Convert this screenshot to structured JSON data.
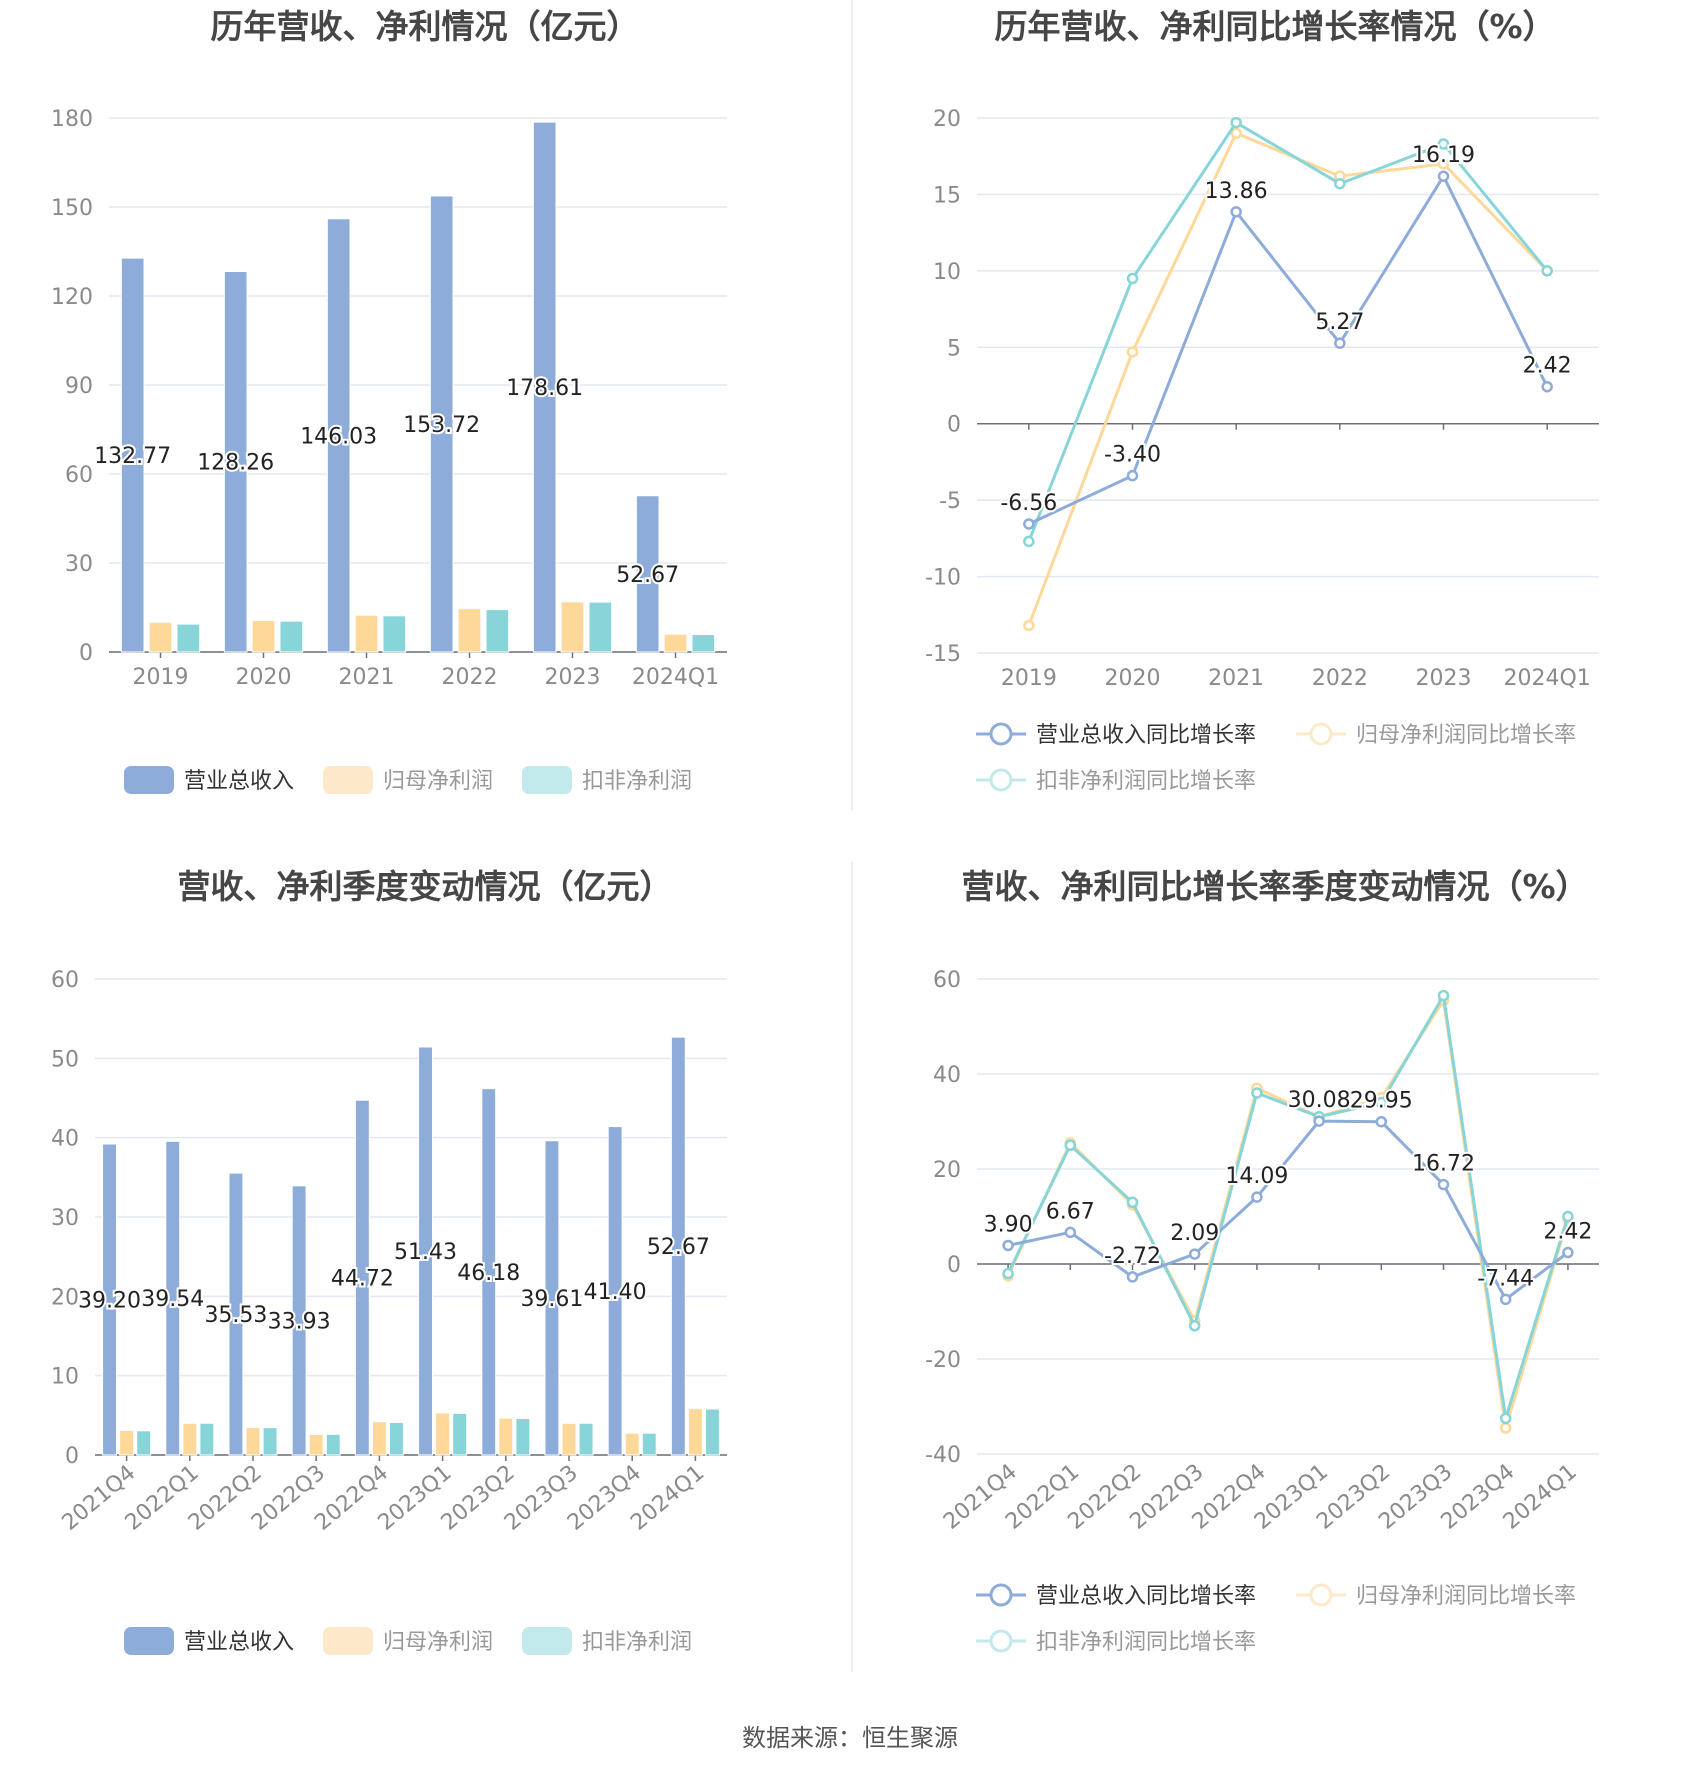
{
  "source": "数据来源：恒生聚源",
  "colors": {
    "revenue": "#8eacd9",
    "net": "#fdd898",
    "kf": "#87d5d9",
    "net_legend": "#fde9c9",
    "kf_legend": "#c2e9eb",
    "grid": "#e3e7f1",
    "axis": "#6e7079"
  },
  "chart_data": [
    {
      "type": "bar",
      "title": "历年营收、净利情况（亿元）",
      "categories": [
        "2019",
        "2020",
        "2021",
        "2022",
        "2023",
        "2024Q1"
      ],
      "yticks": [
        0,
        30,
        60,
        90,
        120,
        150,
        180
      ],
      "ylim": [
        0,
        180
      ],
      "series": [
        {
          "name": "营业总收入",
          "values": [
            132.77,
            128.26,
            146.03,
            153.72,
            178.61,
            52.67
          ],
          "labels": [
            "132.77",
            "128.26",
            "146.03",
            "153.72",
            "178.61",
            "52.67"
          ]
        },
        {
          "name": "归母净利润",
          "values": [
            10.0,
            10.6,
            12.4,
            14.6,
            16.9,
            6.0
          ]
        },
        {
          "name": "扣非净利润",
          "values": [
            9.4,
            10.4,
            12.2,
            14.3,
            16.8,
            5.9
          ]
        }
      ],
      "legend": "bottom"
    },
    {
      "type": "line",
      "title": "历年营收、净利同比增长率情况（%）",
      "categories": [
        "2019",
        "2020",
        "2021",
        "2022",
        "2023",
        "2024Q1"
      ],
      "yticks": [
        -15,
        -10,
        -5,
        0,
        5,
        10,
        15,
        20
      ],
      "ylim": [
        -15,
        20
      ],
      "series": [
        {
          "name": "营业总收入同比增长率",
          "values": [
            -6.56,
            -3.4,
            13.86,
            5.27,
            16.19,
            2.42
          ],
          "labels": [
            "-6.56",
            "-3.40",
            "13.86",
            "5.27",
            "16.19",
            "2.42"
          ]
        },
        {
          "name": "归母净利润同比增长率",
          "values": [
            -13.2,
            4.7,
            19.0,
            16.2,
            17.0,
            10.0
          ]
        },
        {
          "name": "扣非净利润同比增长率",
          "values": [
            -7.7,
            9.5,
            19.7,
            15.7,
            18.3,
            10.0
          ]
        }
      ],
      "legend": "bottom"
    },
    {
      "type": "bar",
      "title": "营收、净利季度变动情况（亿元）",
      "categories": [
        "2021Q4",
        "2022Q1",
        "2022Q2",
        "2022Q3",
        "2022Q4",
        "2023Q1",
        "2023Q2",
        "2023Q3",
        "2023Q4",
        "2024Q1"
      ],
      "yticks": [
        0,
        10,
        20,
        30,
        40,
        50,
        60
      ],
      "ylim": [
        0,
        60
      ],
      "series": [
        {
          "name": "营业总收入",
          "values": [
            39.2,
            39.54,
            35.53,
            33.93,
            44.72,
            51.43,
            46.18,
            39.61,
            41.4,
            52.67
          ],
          "labels": [
            "39.20",
            "39.54",
            "35.53",
            "33.93",
            "44.72",
            "51.43",
            "46.18",
            "39.61",
            "41.40",
            "52.67"
          ]
        },
        {
          "name": "归母净利润",
          "values": [
            3.1,
            4.0,
            3.45,
            2.6,
            4.2,
            5.3,
            4.65,
            4.0,
            2.75,
            5.85
          ]
        },
        {
          "name": "扣非净利润",
          "values": [
            3.05,
            4.0,
            3.45,
            2.6,
            4.1,
            5.25,
            4.6,
            4.0,
            2.75,
            5.8
          ]
        }
      ],
      "legend": "bottom"
    },
    {
      "type": "line",
      "title": "营收、净利同比增长率季度变动情况（%）",
      "categories": [
        "2021Q4",
        "2022Q1",
        "2022Q2",
        "2022Q3",
        "2022Q4",
        "2023Q1",
        "2023Q2",
        "2023Q3",
        "2023Q4",
        "2024Q1"
      ],
      "yticks": [
        -40,
        -20,
        0,
        20,
        40,
        60
      ],
      "ylim": [
        -40,
        60
      ],
      "series": [
        {
          "name": "营业总收入同比增长率",
          "values": [
            3.9,
            6.67,
            -2.72,
            2.09,
            14.09,
            30.08,
            29.95,
            16.72,
            -7.44,
            2.42
          ],
          "labels": [
            "3.90",
            "6.67",
            "-2.72",
            "2.09",
            "14.09",
            "30.08",
            "29.95",
            "16.72",
            "-7.44",
            "2.42"
          ]
        },
        {
          "name": "归母净利润同比增长率",
          "values": [
            -2.5,
            25.5,
            12.5,
            -12.0,
            37.0,
            31.0,
            35.0,
            55.5,
            -34.5,
            9.5
          ]
        },
        {
          "name": "扣非净利润同比增长率",
          "values": [
            -2.0,
            25.0,
            13.0,
            -13.0,
            36.0,
            31.0,
            34.0,
            56.5,
            -32.5,
            10.0
          ]
        }
      ],
      "legend": "bottom"
    }
  ]
}
